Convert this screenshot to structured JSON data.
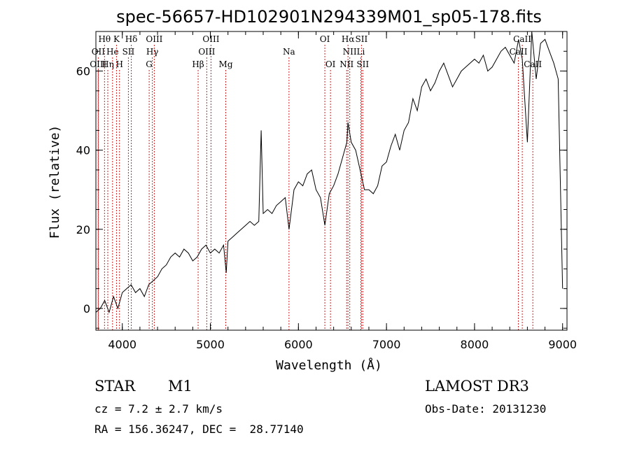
{
  "chart_data": {
    "type": "line",
    "title": "spec-56657-HD102901N294339M01_sp05-178.fits",
    "xlabel": "Wavelength (Å)",
    "ylabel": "Flux (relative)",
    "xlim": [
      3700,
      9050
    ],
    "ylim": [
      -5.5,
      70
    ],
    "xticks": [
      4000,
      5000,
      6000,
      7000,
      8000,
      9000
    ],
    "xtick_labels": [
      "4000",
      "5000",
      "6000",
      "7000",
      "8000",
      "9000"
    ],
    "yticks": [
      0,
      20,
      40,
      60
    ],
    "ytick_labels": [
      "0",
      "20",
      "40",
      "60"
    ],
    "grid": false,
    "line_color": "#000000",
    "marker_color": "#cc2222",
    "series": [
      {
        "name": "flux",
        "x": [
          3700,
          3750,
          3800,
          3850,
          3900,
          3950,
          4000,
          4050,
          4100,
          4150,
          4200,
          4250,
          4300,
          4350,
          4400,
          4450,
          4500,
          4550,
          4600,
          4650,
          4700,
          4750,
          4800,
          4850,
          4900,
          4950,
          5000,
          5050,
          5100,
          5150,
          5180,
          5200,
          5250,
          5300,
          5350,
          5400,
          5450,
          5500,
          5550,
          5577,
          5600,
          5650,
          5700,
          5750,
          5800,
          5850,
          5893,
          5950,
          6000,
          6050,
          6100,
          6150,
          6200,
          6250,
          6300,
          6350,
          6400,
          6450,
          6500,
          6550,
          6563,
          6600,
          6650,
          6700,
          6750,
          6800,
          6850,
          6900,
          6950,
          7000,
          7050,
          7100,
          7150,
          7200,
          7250,
          7300,
          7350,
          7400,
          7450,
          7500,
          7550,
          7600,
          7650,
          7700,
          7750,
          7800,
          7850,
          7900,
          7950,
          8000,
          8050,
          8100,
          8150,
          8200,
          8250,
          8300,
          8350,
          8400,
          8450,
          8500,
          8542,
          8600,
          8650,
          8700,
          8750,
          8800,
          8850,
          8900,
          8950,
          9000
        ],
        "y": [
          -1,
          0,
          2,
          -1,
          3,
          0,
          4,
          5,
          6,
          4,
          5,
          3,
          6,
          7,
          8,
          10,
          11,
          13,
          14,
          13,
          15,
          14,
          12,
          13,
          15,
          16,
          14,
          15,
          14,
          16,
          9,
          17,
          18,
          19,
          20,
          21,
          22,
          21,
          22,
          45,
          24,
          25,
          24,
          26,
          27,
          28,
          20,
          30,
          32,
          31,
          34,
          35,
          30,
          28,
          21,
          29,
          31,
          34,
          38,
          42,
          47,
          42,
          40,
          35,
          30,
          30,
          29,
          31,
          36,
          37,
          41,
          44,
          40,
          45,
          47,
          53,
          50,
          56,
          58,
          55,
          57,
          60,
          62,
          59,
          56,
          58,
          60,
          61,
          62,
          63,
          62,
          64,
          60,
          61,
          63,
          65,
          66,
          64,
          62,
          68,
          63,
          42,
          70,
          58,
          67,
          68,
          65,
          62,
          58,
          5
        ]
      }
    ],
    "line_markers": [
      {
        "label": "Hθ",
        "x": 3798,
        "tier": 1
      },
      {
        "label": "OII",
        "x": 3727,
        "tier": 2
      },
      {
        "label": "OIII",
        "x": 3726,
        "tier": 3
      },
      {
        "label": "K",
        "x": 3934,
        "tier": 1
      },
      {
        "label": "He",
        "x": 3889,
        "tier": 2
      },
      {
        "label": "Hη",
        "x": 3835,
        "tier": 3
      },
      {
        "label": "H",
        "x": 3968,
        "tier": 3
      },
      {
        "label": "Hδ",
        "x": 4102,
        "tier": 1
      },
      {
        "label": "SII",
        "x": 4069,
        "tier": 2
      },
      {
        "label": "OIII",
        "x": 4363,
        "tier": 1
      },
      {
        "label": "Hγ",
        "x": 4341,
        "tier": 2
      },
      {
        "label": "G",
        "x": 4305,
        "tier": 3
      },
      {
        "label": "OIII",
        "x": 5007,
        "tier": 1
      },
      {
        "label": "OIII",
        "x": 4959,
        "tier": 2
      },
      {
        "label": "Hβ",
        "x": 4861,
        "tier": 3
      },
      {
        "label": "Mg",
        "x": 5175,
        "tier": 3
      },
      {
        "label": "Na",
        "x": 5893,
        "tier": 2
      },
      {
        "label": "OI",
        "x": 6300,
        "tier": 1
      },
      {
        "label": "OI",
        "x": 6364,
        "tier": 3
      },
      {
        "label": "Hα",
        "x": 6563,
        "tier": 1
      },
      {
        "label": "SII",
        "x": 6716,
        "tier": 1
      },
      {
        "label": "NII",
        "x": 6583,
        "tier": 2
      },
      {
        "label": "Li",
        "x": 6708,
        "tier": 2
      },
      {
        "label": "NII",
        "x": 6548,
        "tier": 3
      },
      {
        "label": "SII",
        "x": 6731,
        "tier": 3
      },
      {
        "label": "CaII",
        "x": 8542,
        "tier": 1
      },
      {
        "label": "CaII",
        "x": 8498,
        "tier": 2
      },
      {
        "label": "CaII",
        "x": 8662,
        "tier": 3
      }
    ]
  },
  "info": {
    "object_type": "STAR",
    "subclass": "M1",
    "survey": "LAMOST DR3",
    "cz": "cz = 7.2 ± 2.7 km/s",
    "obs_date": "Obs-Date: 20131230",
    "coords": "RA = 156.36247, DEC =  28.77140"
  }
}
